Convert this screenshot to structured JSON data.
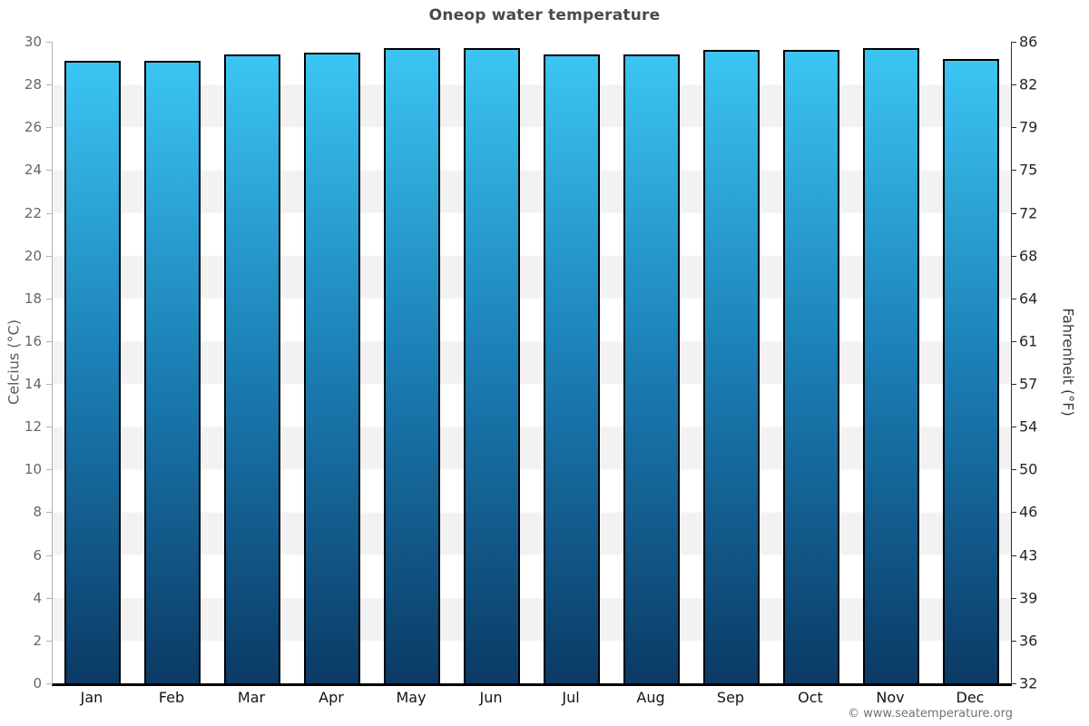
{
  "page": {
    "title": "Oneop water temperature",
    "ylabel_left": "Celcius (°C)",
    "ylabel_right": "Fahrenheit (°F)",
    "copyright": "© www.seatemperature.org"
  },
  "chart_data": {
    "type": "bar",
    "title": "Oneop water temperature",
    "xlabel": "",
    "ylabel_left": "Celcius (°C)",
    "ylabel_right": "Fahrenheit (°F)",
    "unit": "°C",
    "categories": [
      "Jan",
      "Feb",
      "Mar",
      "Apr",
      "May",
      "Jun",
      "Jul",
      "Aug",
      "Sep",
      "Oct",
      "Nov",
      "Dec"
    ],
    "values": [
      29.1,
      29.1,
      29.4,
      29.5,
      29.7,
      29.7,
      29.4,
      29.4,
      29.6,
      29.6,
      29.7,
      29.2
    ],
    "ylim": [
      0,
      30
    ],
    "yticks_celsius": [
      30,
      28,
      26,
      24,
      22,
      20,
      18,
      16,
      14,
      12,
      10,
      8,
      6,
      4,
      2,
      0
    ],
    "yticks_fahrenheit": [
      86,
      82,
      79,
      75,
      72,
      68,
      64,
      61,
      57,
      54,
      50,
      46,
      43,
      39,
      36,
      32
    ],
    "legend": "none",
    "grid": "alternating horizontal bands every 2°C (white / light gray)",
    "colors": {
      "bar_gradient_top": "#3bc5f3",
      "bar_gradient_mid": "#1a7db3",
      "bar_gradient_bottom": "#0b3a65",
      "bar_border": "#000000",
      "band_gray": "#f2f2f2",
      "band_white": "#ffffff",
      "left_axis": "#b3b3b3",
      "right_axis": "#2e2e2e",
      "bottom_axis": "#000000",
      "title_text": "#4a4a4a",
      "left_tick_text": "#666666",
      "right_tick_text": "#262626",
      "month_label_text": "#141414",
      "copyright_text": "#737373"
    }
  }
}
